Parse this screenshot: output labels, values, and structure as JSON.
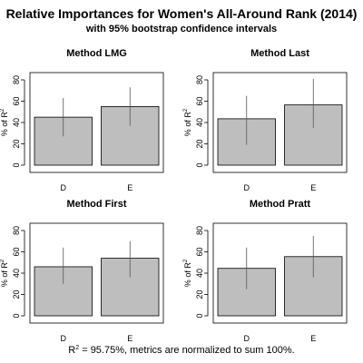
{
  "title": "Relative Importances for Women's All-Around Rank (2014)",
  "subtitle": "with 95% bootstrap confidence intervals",
  "footnote": {
    "r_symbol": "R",
    "r_exponent": "2",
    "text": " = 95.75%, metrics are normalized to sum 100%."
  },
  "ylabel": {
    "prefix": "% of R",
    "exponent": "2"
  },
  "chart_data": [
    {
      "type": "bar",
      "title": "Method LMG",
      "categories": [
        "D",
        "E"
      ],
      "values": [
        45,
        55
      ],
      "ci_low": [
        27,
        37
      ],
      "ci_high": [
        63,
        73
      ],
      "ylabel": "% of R2",
      "yticks": [
        0,
        20,
        40,
        60,
        80
      ],
      "ylim": [
        0,
        80
      ]
    },
    {
      "type": "bar",
      "title": "Method Last",
      "categories": [
        "D",
        "E"
      ],
      "values": [
        43.5,
        56.5
      ],
      "ci_low": [
        19,
        35
      ],
      "ci_high": [
        65,
        81
      ],
      "ylabel": "% of R2",
      "yticks": [
        0,
        20,
        40,
        60,
        80
      ],
      "ylim": [
        0,
        80
      ]
    },
    {
      "type": "bar",
      "title": "Method First",
      "categories": [
        "D",
        "E"
      ],
      "values": [
        46,
        54
      ],
      "ci_low": [
        30,
        36
      ],
      "ci_high": [
        64,
        70
      ],
      "ylabel": "% of R2",
      "yticks": [
        0,
        20,
        40,
        60,
        80
      ],
      "ylim": [
        0,
        80
      ]
    },
    {
      "type": "bar",
      "title": "Method Pratt",
      "categories": [
        "D",
        "E"
      ],
      "values": [
        44.5,
        55.5
      ],
      "ci_low": [
        25,
        36
      ],
      "ci_high": [
        64,
        75
      ],
      "ylabel": "% of R2",
      "yticks": [
        0,
        20,
        40,
        60,
        80
      ],
      "ylim": [
        0,
        80
      ]
    }
  ],
  "colors": {
    "bar_fill": "#bebebe",
    "bar_stroke": "#000000",
    "ci_line": "#555555",
    "frame": "#000000"
  }
}
